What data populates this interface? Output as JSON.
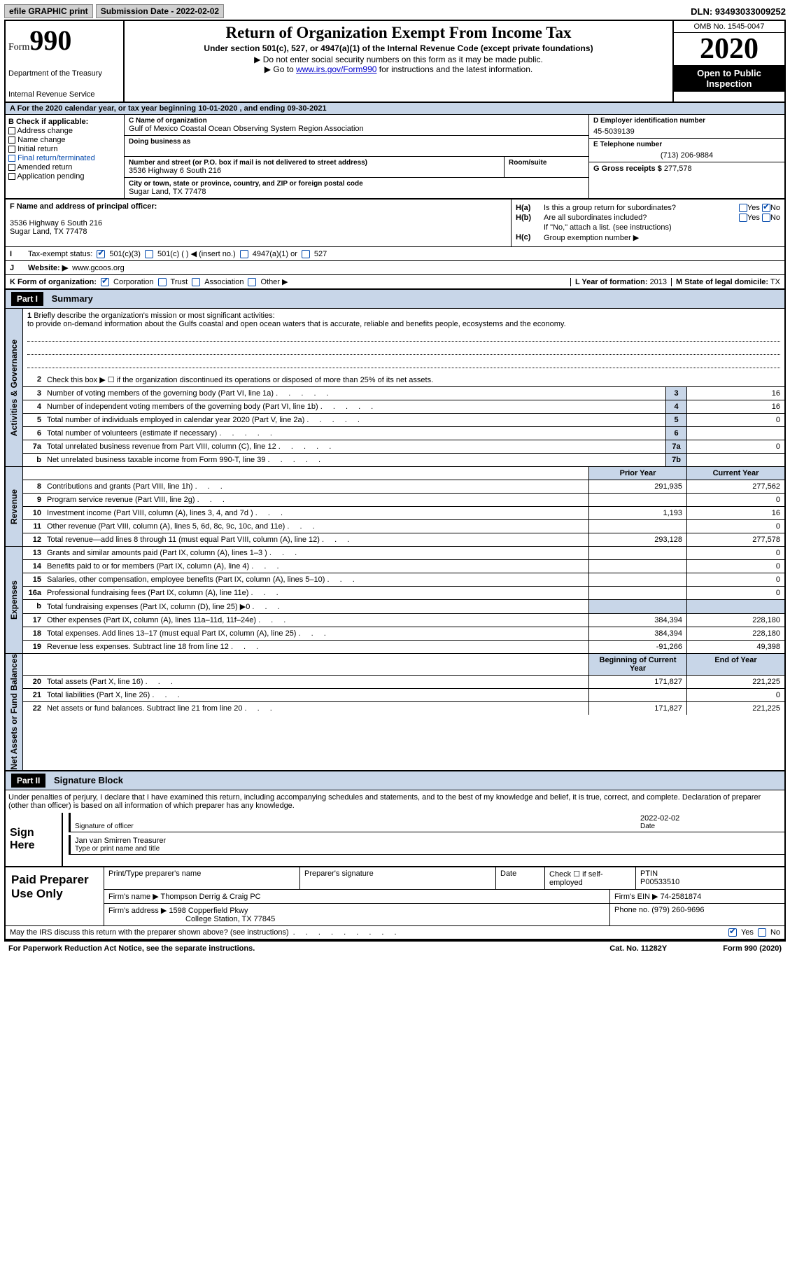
{
  "top": {
    "efile_btn": "efile GRAPHIC print",
    "submission_label": "Submission Date - 2022-02-02",
    "dln": "DLN: 93493033009252"
  },
  "header": {
    "form_word": "Form",
    "form_number": "990",
    "dept": "Department of the Treasury",
    "irs": "Internal Revenue Service",
    "title": "Return of Organization Exempt From Income Tax",
    "subtitle": "Under section 501(c), 527, or 4947(a)(1) of the Internal Revenue Code (except private foundations)",
    "note1": "▶ Do not enter social security numbers on this form as it may be made public.",
    "note2_pre": "▶ Go to ",
    "note2_link": "www.irs.gov/Form990",
    "note2_post": " for instructions and the latest information.",
    "omb": "OMB No. 1545-0047",
    "year": "2020",
    "inspect": "Open to Public Inspection"
  },
  "period": "A For the 2020 calendar year, or tax year beginning 10-01-2020    , and ending 09-30-2021",
  "boxB": {
    "label": "B Check if applicable:",
    "items": [
      "Address change",
      "Name change",
      "Initial return",
      "Final return/terminated",
      "Amended return",
      "Application pending"
    ]
  },
  "boxC": {
    "name_lbl": "C Name of organization",
    "name": "Gulf of Mexico Coastal Ocean Observing System Region Association",
    "dba_lbl": "Doing business as",
    "addr_lbl": "Number and street (or P.O. box if mail is not delivered to street address)",
    "room_lbl": "Room/suite",
    "addr": "3536 Highway 6 South 216",
    "city_lbl": "City or town, state or province, country, and ZIP or foreign postal code",
    "city": "Sugar Land, TX  77478"
  },
  "boxD": {
    "ein_lbl": "D Employer identification number",
    "ein": "45-5039139",
    "phone_lbl": "E Telephone number",
    "phone": "(713) 206-9884",
    "gross_lbl": "G Gross receipts $",
    "gross": "277,578"
  },
  "boxF": {
    "lbl": "F  Name and address of principal officer:",
    "addr1": "3536 Highway 6 South 216",
    "addr2": "Sugar Land, TX  77478"
  },
  "boxH": {
    "ha_lbl": "H(a)",
    "ha_txt": "Is this a group return for subordinates?",
    "hb_lbl": "H(b)",
    "hb_txt": "Are all subordinates included?",
    "hb_note": "If \"No,\" attach a list. (see instructions)",
    "hc_lbl": "H(c)",
    "hc_txt": "Group exemption number ▶",
    "yes": "Yes",
    "no": "No"
  },
  "taxStatus": {
    "lbl": "Tax-exempt status:",
    "opts": [
      "501(c)(3)",
      "501(c) (  ) ◀ (insert no.)",
      "4947(a)(1) or",
      "527"
    ]
  },
  "website": {
    "lbl": "Website: ▶",
    "val": "www.gcoos.org"
  },
  "orgForm": {
    "lbl": "K Form of organization:",
    "opts": [
      "Corporation",
      "Trust",
      "Association",
      "Other ▶"
    ]
  },
  "boxL": {
    "lbl": "L Year of formation:",
    "val": "2013"
  },
  "boxM": {
    "lbl": "M State of legal domicile:",
    "val": "TX"
  },
  "part1": {
    "hdr": "Part I",
    "title": "Summary"
  },
  "mission": {
    "lbl": "Briefly describe the organization's mission or most significant activities:",
    "txt": "to provide on-demand information about the Gulfs coastal and open ocean waters that is accurate, reliable and benefits people, ecosystems and the economy."
  },
  "line2": "Check this box ▶ ☐  if the organization discontinued its operations or disposed of more than 25% of its net assets.",
  "govLines": [
    {
      "n": "3",
      "t": "Number of voting members of the governing body (Part VI, line 1a)",
      "b": "3",
      "v": "16"
    },
    {
      "n": "4",
      "t": "Number of independent voting members of the governing body (Part VI, line 1b)",
      "b": "4",
      "v": "16"
    },
    {
      "n": "5",
      "t": "Total number of individuals employed in calendar year 2020 (Part V, line 2a)",
      "b": "5",
      "v": "0"
    },
    {
      "n": "6",
      "t": "Total number of volunteers (estimate if necessary)",
      "b": "6",
      "v": ""
    },
    {
      "n": "7a",
      "t": "Total unrelated business revenue from Part VIII, column (C), line 12",
      "b": "7a",
      "v": "0"
    },
    {
      "n": "b",
      "t": "Net unrelated business taxable income from Form 990-T, line 39",
      "b": "7b",
      "v": ""
    }
  ],
  "colHdrs": {
    "prior": "Prior Year",
    "current": "Current Year",
    "beg": "Beginning of Current Year",
    "end": "End of Year"
  },
  "revLines": [
    {
      "n": "8",
      "t": "Contributions and grants (Part VIII, line 1h)",
      "p": "291,935",
      "c": "277,562"
    },
    {
      "n": "9",
      "t": "Program service revenue (Part VIII, line 2g)",
      "p": "",
      "c": "0"
    },
    {
      "n": "10",
      "t": "Investment income (Part VIII, column (A), lines 3, 4, and 7d )",
      "p": "1,193",
      "c": "16"
    },
    {
      "n": "11",
      "t": "Other revenue (Part VIII, column (A), lines 5, 6d, 8c, 9c, 10c, and 11e)",
      "p": "",
      "c": "0"
    },
    {
      "n": "12",
      "t": "Total revenue—add lines 8 through 11 (must equal Part VIII, column (A), line 12)",
      "p": "293,128",
      "c": "277,578"
    }
  ],
  "expLines": [
    {
      "n": "13",
      "t": "Grants and similar amounts paid (Part IX, column (A), lines 1–3 )",
      "p": "",
      "c": "0"
    },
    {
      "n": "14",
      "t": "Benefits paid to or for members (Part IX, column (A), line 4)",
      "p": "",
      "c": "0"
    },
    {
      "n": "15",
      "t": "Salaries, other compensation, employee benefits (Part IX, column (A), lines 5–10)",
      "p": "",
      "c": "0"
    },
    {
      "n": "16a",
      "t": "Professional fundraising fees (Part IX, column (A), line 11e)",
      "p": "",
      "c": "0"
    },
    {
      "n": "b",
      "t": "Total fundraising expenses (Part IX, column (D), line 25) ▶0",
      "p": "shade",
      "c": "shade"
    },
    {
      "n": "17",
      "t": "Other expenses (Part IX, column (A), lines 11a–11d, 11f–24e)",
      "p": "384,394",
      "c": "228,180"
    },
    {
      "n": "18",
      "t": "Total expenses. Add lines 13–17 (must equal Part IX, column (A), line 25)",
      "p": "384,394",
      "c": "228,180"
    },
    {
      "n": "19",
      "t": "Revenue less expenses. Subtract line 18 from line 12",
      "p": "-91,266",
      "c": "49,398"
    }
  ],
  "netLines": [
    {
      "n": "20",
      "t": "Total assets (Part X, line 16)",
      "p": "171,827",
      "c": "221,225"
    },
    {
      "n": "21",
      "t": "Total liabilities (Part X, line 26)",
      "p": "",
      "c": "0"
    },
    {
      "n": "22",
      "t": "Net assets or fund balances. Subtract line 21 from line 20",
      "p": "171,827",
      "c": "221,225"
    }
  ],
  "sideLabels": {
    "gov": "Activities & Governance",
    "rev": "Revenue",
    "exp": "Expenses",
    "net": "Net Assets or Fund Balances"
  },
  "part2": {
    "hdr": "Part II",
    "title": "Signature Block"
  },
  "sigDecl": "Under penalties of perjury, I declare that I have examined this return, including accompanying schedules and statements, and to the best of my knowledge and belief, it is true, correct, and complete. Declaration of preparer (other than officer) is based on all information of which preparer has any knowledge.",
  "sign": {
    "lbl": "Sign Here",
    "sig_lbl": "Signature of officer",
    "date": "2022-02-02",
    "date_lbl": "Date",
    "name": "Jan van Smirren Treasurer",
    "name_lbl": "Type or print name and title"
  },
  "prep": {
    "lbl": "Paid Preparer Use Only",
    "r1": {
      "a": "Print/Type preparer's name",
      "b": "Preparer's signature",
      "c": "Date",
      "d": "Check ☐ if self-employed",
      "e": "PTIN",
      "ev": "P00533510"
    },
    "r2": {
      "a": "Firm's name    ▶",
      "av": "Thompson Derrig & Craig PC",
      "b": "Firm's EIN ▶",
      "bv": "74-2581874"
    },
    "r3": {
      "a": "Firm's address ▶",
      "av1": "1598 Copperfield Pkwy",
      "av2": "College Station, TX  77845",
      "b": "Phone no.",
      "bv": "(979) 260-9696"
    }
  },
  "discuss": {
    "txt": "May the IRS discuss this return with the preparer shown above? (see instructions)",
    "yes": "Yes",
    "no": "No"
  },
  "footer": {
    "left": "For Paperwork Reduction Act Notice, see the separate instructions.",
    "mid": "Cat. No. 11282Y",
    "right": "Form 990 (2020)"
  }
}
